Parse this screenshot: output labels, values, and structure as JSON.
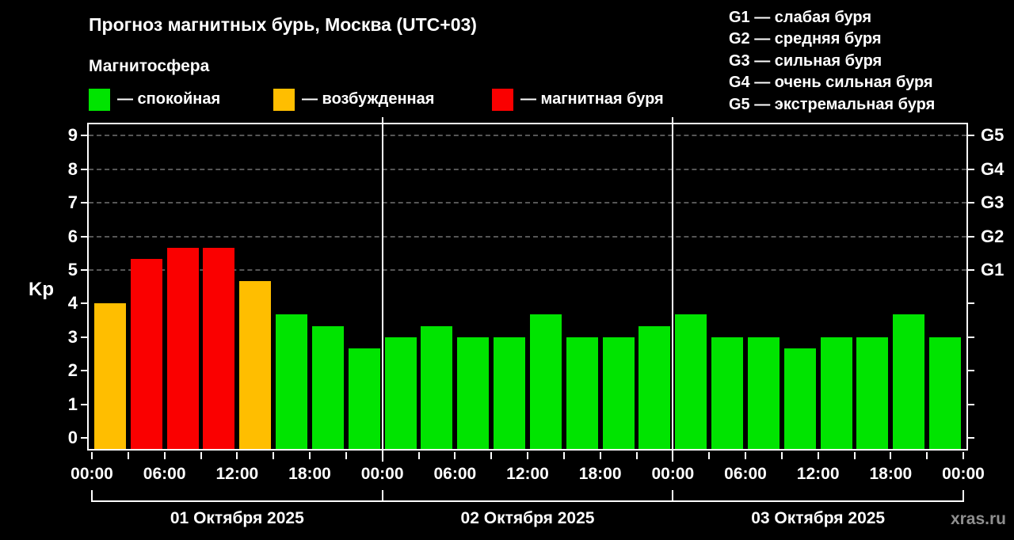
{
  "title": "Прогноз магнитных бурь, Москва (UTC+03)",
  "subtitle": "Магнитосфера",
  "legend": {
    "items": [
      {
        "key": "quiet",
        "label": "— спокойная",
        "color": "#00e400"
      },
      {
        "key": "excited",
        "label": "— возбужденная",
        "color": "#ffbe00"
      },
      {
        "key": "storm",
        "label": "— магнитная буря",
        "color": "#fa0000"
      }
    ]
  },
  "g_legend": {
    "items": [
      "G1 — слабая буря",
      "G2 — средняя буря",
      "G3 — сильная буря",
      "G4 — очень сильная буря",
      "G5 — экстремальная буря"
    ]
  },
  "watermark": "xras.ru",
  "chart_data": {
    "type": "bar",
    "title": "Прогноз магнитных бурь, Москва (UTC+03)",
    "ylabel": "Kp",
    "ylim": [
      -0.33,
      9.34
    ],
    "yticks": [
      0,
      1,
      2,
      3,
      4,
      5,
      6,
      7,
      8,
      9
    ],
    "grid_dashed_at": [
      5,
      6,
      7,
      8,
      9
    ],
    "right_axis": {
      "at": [
        5,
        6,
        7,
        8,
        9
      ],
      "labels": [
        "G1",
        "G2",
        "G3",
        "G4",
        "G5"
      ]
    },
    "x_time_labels": [
      "00:00",
      "06:00",
      "12:00",
      "18:00",
      "00:00",
      "06:00",
      "12:00",
      "18:00",
      "00:00",
      "06:00",
      "12:00",
      "18:00",
      "00:00"
    ],
    "interval_hours": 3,
    "colors": {
      "quiet": "#00e400",
      "excited": "#ffbe00",
      "storm": "#fa0000"
    },
    "days": [
      {
        "date": "01 Октября 2025",
        "values": [
          4.0,
          5.33,
          5.67,
          5.67,
          4.67,
          3.67,
          3.33,
          2.67
        ],
        "statuses": [
          "excited",
          "storm",
          "storm",
          "storm",
          "excited",
          "quiet",
          "quiet",
          "quiet"
        ]
      },
      {
        "date": "02 Октября 2025",
        "values": [
          3.0,
          3.33,
          3.0,
          3.0,
          3.67,
          3.0,
          3.0,
          3.33
        ],
        "statuses": [
          "quiet",
          "quiet",
          "quiet",
          "quiet",
          "quiet",
          "quiet",
          "quiet",
          "quiet"
        ]
      },
      {
        "date": "03 Октября 2025",
        "values": [
          3.67,
          3.0,
          3.0,
          2.67,
          3.0,
          3.0,
          3.67,
          3.0
        ],
        "statuses": [
          "quiet",
          "quiet",
          "quiet",
          "quiet",
          "quiet",
          "quiet",
          "quiet",
          "quiet"
        ]
      }
    ]
  }
}
